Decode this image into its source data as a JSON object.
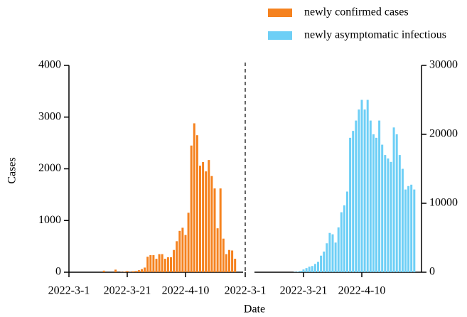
{
  "chart_data": [
    {
      "type": "bar",
      "x_label": "Date",
      "y_label": "Cases",
      "y_axis_position": "left",
      "categories": [
        "2022-3-1",
        null,
        null,
        null,
        null,
        null,
        null,
        null,
        null,
        null,
        null,
        null,
        null,
        null,
        null,
        null,
        null,
        null,
        null,
        null,
        "2022-3-21",
        null,
        null,
        null,
        null,
        null,
        null,
        null,
        null,
        null,
        null,
        null,
        null,
        null,
        null,
        null,
        null,
        null,
        null,
        null,
        "2022-4-10",
        null,
        null,
        null,
        null,
        null,
        null,
        null,
        null,
        null,
        null,
        null,
        null,
        null,
        null,
        null,
        null,
        null
      ],
      "series": [
        {
          "name": "newly confirmed cases",
          "color": "#f5821f",
          "values": [
            0,
            0,
            0,
            0,
            0,
            0,
            0,
            0,
            0,
            0,
            0,
            0,
            30,
            0,
            0,
            0,
            50,
            0,
            5,
            10,
            25,
            5,
            20,
            25,
            40,
            60,
            90,
            300,
            330,
            330,
            260,
            350,
            350,
            260,
            290,
            290,
            430,
            600,
            800,
            860,
            720,
            1150,
            2450,
            2880,
            2650,
            2060,
            2130,
            1950,
            2170,
            1860,
            1620,
            850,
            1620,
            650,
            350,
            430,
            420,
            260
          ]
        }
      ],
      "ylim": [
        0,
        4000
      ],
      "yticks": [
        0,
        1000,
        2000,
        3000,
        4000
      ]
    },
    {
      "type": "bar",
      "y_axis_position": "right",
      "categories": [
        "2022-3-1",
        null,
        null,
        null,
        null,
        null,
        null,
        null,
        null,
        null,
        null,
        null,
        null,
        null,
        null,
        null,
        null,
        null,
        null,
        null,
        "2022-3-21",
        null,
        null,
        null,
        null,
        null,
        null,
        null,
        null,
        null,
        null,
        null,
        null,
        null,
        null,
        null,
        null,
        null,
        null,
        null,
        "2022-4-10",
        null,
        null,
        null,
        null,
        null,
        null,
        null,
        null,
        null,
        null,
        null,
        null,
        null,
        null,
        null,
        null,
        null,
        null
      ],
      "series": [
        {
          "name": "newly asymptomatic infectious",
          "color": "#6ecff6",
          "values": [
            0,
            0,
            0,
            0,
            0,
            0,
            0,
            0,
            0,
            0,
            0,
            0,
            0,
            0,
            0,
            0,
            0,
            50,
            100,
            200,
            400,
            600,
            800,
            900,
            1200,
            1500,
            2400,
            3000,
            4200,
            5700,
            5500,
            4300,
            6500,
            8700,
            9700,
            11700,
            19500,
            20500,
            22000,
            23600,
            25000,
            23600,
            25000,
            22000,
            20000,
            19500,
            22000,
            18500,
            17000,
            16500,
            16000,
            21000,
            20000,
            17000,
            15000,
            12000,
            12500,
            12700,
            12000
          ]
        }
      ],
      "ylim": [
        0,
        30000
      ],
      "yticks": [
        0,
        10000,
        20000,
        30000
      ]
    }
  ]
}
